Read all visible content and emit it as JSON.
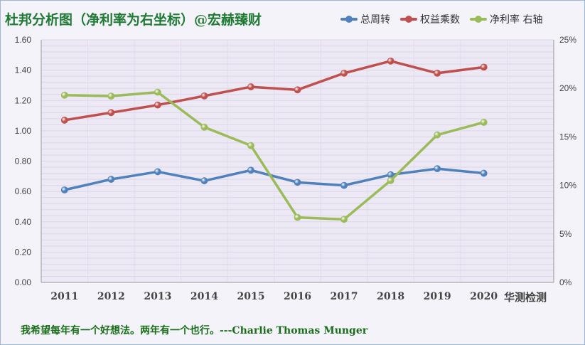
{
  "title": "杜邦分析图（净利率为右坐标）@宏赫臻财",
  "watermark": "华测检测",
  "quote": "我希望每年有一个好想法。两年有一个也行。---Charlie Thomas  Munger",
  "chart_data": {
    "type": "line",
    "x": [
      "2011",
      "2012",
      "2013",
      "2014",
      "2015",
      "2016",
      "2017",
      "2018",
      "2019",
      "2020"
    ],
    "series": [
      {
        "name": "总周转",
        "axis": "left",
        "color": "#4f81bd",
        "values": [
          0.61,
          0.68,
          0.73,
          0.67,
          0.74,
          0.66,
          0.64,
          0.71,
          0.75,
          0.72
        ]
      },
      {
        "name": "权益乘数",
        "axis": "left",
        "color": "#c0504d",
        "values": [
          1.07,
          1.12,
          1.17,
          1.23,
          1.29,
          1.27,
          1.38,
          1.46,
          1.38,
          1.42
        ]
      },
      {
        "name": "净利率 右轴",
        "axis": "right",
        "color": "#9bbb59",
        "values": [
          0.193,
          0.192,
          0.196,
          0.16,
          0.141,
          0.067,
          0.065,
          0.105,
          0.152,
          0.165
        ]
      }
    ],
    "left_axis": {
      "min": 0,
      "max": 1.6,
      "step": 0.2,
      "tick_labels": [
        "0.00",
        "0.20",
        "0.40",
        "0.60",
        "0.80",
        "1.00",
        "1.20",
        "1.40",
        "1.60"
      ]
    },
    "right_axis": {
      "min": 0,
      "max": 0.25,
      "step": 0.05,
      "tick_labels": [
        "0%",
        "5%",
        "10%",
        "15%",
        "20%",
        "25%"
      ]
    },
    "grid": true,
    "legend_position": "top-right"
  }
}
